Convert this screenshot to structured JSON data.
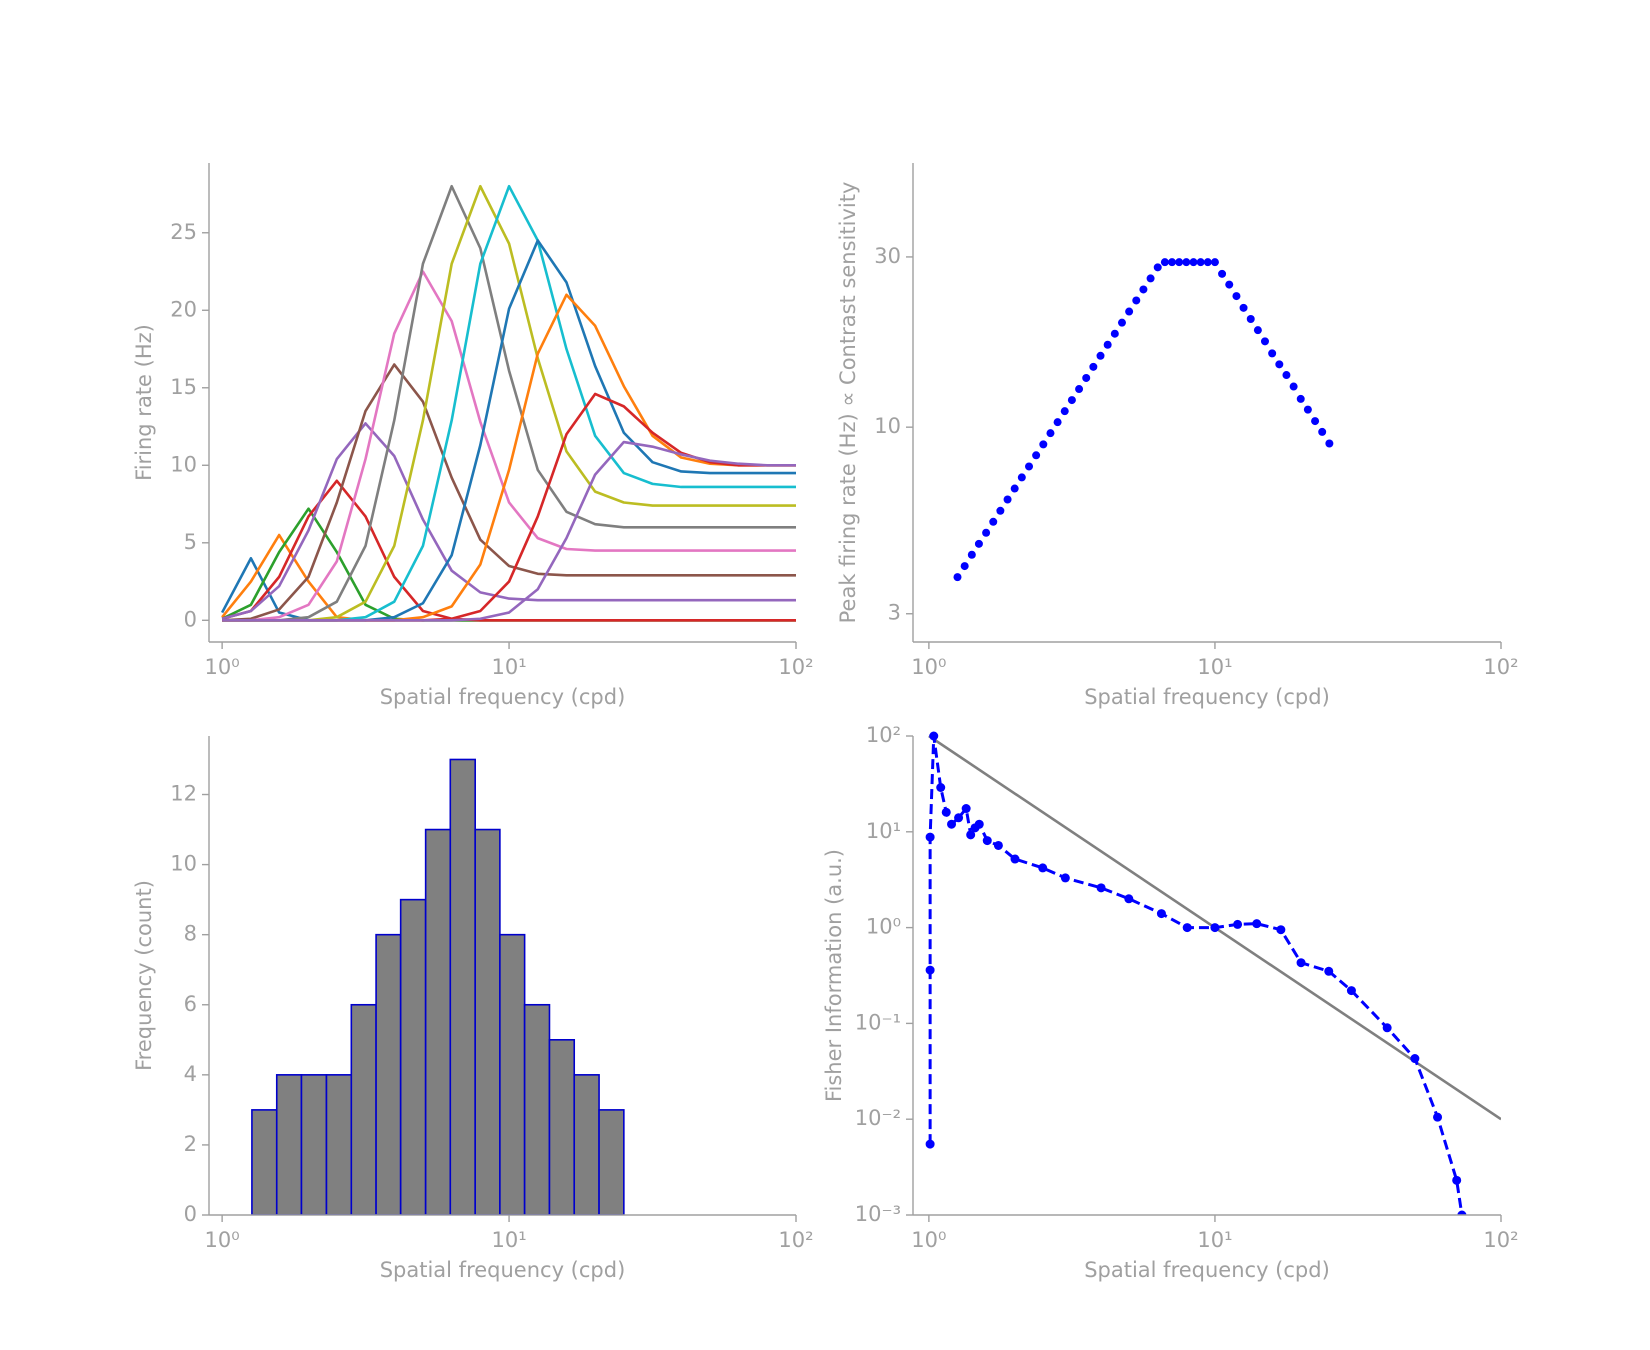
{
  "chart_data": [
    {
      "type": "line",
      "xscale": "log",
      "xlabel": "Spatial frequency (cpd)",
      "ylabel": "Firing rate (Hz)",
      "xlim": [
        0.9,
        100
      ],
      "ylim": [
        -1.4,
        29.5
      ],
      "xticks": [
        {
          "value": 1,
          "label": "10⁰"
        },
        {
          "value": 10,
          "label": "10¹"
        },
        {
          "value": 100,
          "label": "10²"
        }
      ],
      "yticks": [
        0,
        5,
        10,
        15,
        20,
        25
      ],
      "x": [
        1,
        1.26,
        1.58,
        2,
        2.51,
        3.16,
        3.98,
        5.01,
        6.31,
        7.94,
        10,
        12.59,
        15.85,
        19.95,
        25.12,
        31.62,
        39.81,
        50.12,
        63.1,
        79.43,
        100
      ],
      "series": [
        {
          "color": "#1f77b4",
          "values": [
            0.5,
            4,
            0.5,
            0,
            0,
            0,
            0,
            0,
            0,
            0,
            0,
            0,
            0,
            0,
            0,
            0,
            0,
            0,
            0,
            0,
            0
          ]
        },
        {
          "color": "#ff7f0e",
          "values": [
            0.2,
            2.5,
            5.5,
            2.5,
            0.2,
            0,
            0,
            0,
            0,
            0,
            0,
            0,
            0,
            0,
            0,
            0,
            0,
            0,
            0,
            0,
            0
          ]
        },
        {
          "color": "#2ca02c",
          "values": [
            0.1,
            1.0,
            4.4,
            7.2,
            4.4,
            1.0,
            0.1,
            0,
            0,
            0,
            0,
            0,
            0,
            0,
            0,
            0,
            0,
            0,
            0,
            0,
            0
          ]
        },
        {
          "color": "#d62728",
          "values": [
            0.1,
            0.6,
            2.8,
            6.7,
            9,
            6.7,
            2.8,
            0.6,
            0.1,
            0,
            0,
            0,
            0,
            0,
            0,
            0,
            0,
            0,
            0,
            0,
            0
          ]
        },
        {
          "color": "#9467bd",
          "values": [
            0.1,
            0.6,
            2.2,
            5.8,
            10.4,
            12.7,
            10.6,
            6.5,
            3.2,
            1.8,
            1.4,
            1.3,
            1.3,
            1.3,
            1.3,
            1.3,
            1.3,
            1.3,
            1.3,
            1.3,
            1.3
          ]
        },
        {
          "color": "#8c564b",
          "values": [
            0,
            0.1,
            0.7,
            2.8,
            7.6,
            13.5,
            16.5,
            14.1,
            9.2,
            5.2,
            3.5,
            3.0,
            2.9,
            2.9,
            2.9,
            2.9,
            2.9,
            2.9,
            2.9,
            2.9,
            2.9
          ]
        },
        {
          "color": "#e377c2",
          "values": [
            0,
            0,
            0.2,
            1.0,
            3.8,
            10.4,
            18.5,
            22.5,
            19.3,
            12.8,
            7.6,
            5.3,
            4.6,
            4.5,
            4.5,
            4.5,
            4.5,
            4.5,
            4.5,
            4.5,
            4.5
          ]
        },
        {
          "color": "#7f7f7f",
          "values": [
            0,
            0,
            0,
            0.2,
            1.2,
            4.8,
            12.9,
            23.0,
            28,
            24.0,
            16.1,
            9.7,
            7.0,
            6.2,
            6,
            6,
            6,
            6,
            6,
            6,
            6
          ]
        },
        {
          "color": "#bcbd22",
          "values": [
            0,
            0,
            0,
            0,
            0.2,
            1.2,
            4.8,
            12.9,
            23.0,
            28,
            24.3,
            16.9,
            10.9,
            8.3,
            7.6,
            7.4,
            7.4,
            7.4,
            7.4,
            7.4,
            7.4
          ]
        },
        {
          "color": "#17becf",
          "values": [
            0,
            0,
            0,
            0,
            0,
            0.2,
            1.2,
            4.8,
            12.9,
            23.0,
            28,
            24.5,
            17.5,
            11.9,
            9.5,
            8.8,
            8.6,
            8.6,
            8.6,
            8.6,
            8.6
          ]
        },
        {
          "color": "#1f77b4",
          "values": [
            0,
            0,
            0,
            0,
            0,
            0,
            0.2,
            1.1,
            4.2,
            11.3,
            20.1,
            24.5,
            21.8,
            16.4,
            12.1,
            10.2,
            9.6,
            9.5,
            9.5,
            9.5,
            9.5
          ]
        },
        {
          "color": "#ff7f0e",
          "values": [
            0,
            0,
            0,
            0,
            0,
            0,
            0,
            0.2,
            0.9,
            3.6,
            9.7,
            17.2,
            21,
            19.0,
            15.1,
            11.9,
            10.5,
            10.1,
            10,
            10,
            10
          ]
        },
        {
          "color": "#d62728",
          "values": [
            0,
            0,
            0,
            0,
            0,
            0,
            0,
            0,
            0.1,
            0.6,
            2.5,
            6.7,
            12.0,
            14.6,
            13.8,
            12.1,
            10.8,
            10.2,
            10,
            10,
            10
          ]
        },
        {
          "color": "#9467bd",
          "values": [
            0,
            0,
            0,
            0,
            0,
            0,
            0,
            0,
            0,
            0.1,
            0.5,
            2.0,
            5.3,
            9.4,
            11.5,
            11.2,
            10.7,
            10.3,
            10.1,
            10,
            10
          ]
        }
      ]
    },
    {
      "type": "scatter",
      "xscale": "log",
      "yscale": "log",
      "xlabel": "Spatial frequency (cpd)",
      "ylabel": "Peak firing rate (Hz) ∝ Contrast sensitivity",
      "xlim": [
        0.88,
        100
      ],
      "ylim": [
        2.5,
        55
      ],
      "xticks": [
        {
          "value": 1,
          "label": "10⁰"
        },
        {
          "value": 10,
          "label": "10¹"
        },
        {
          "value": 100,
          "label": "10²"
        }
      ],
      "yticks": [
        3,
        10,
        30
      ],
      "color": "#0000ff",
      "x": [
        1.259,
        1.334,
        1.413,
        1.496,
        1.585,
        1.679,
        1.778,
        1.884,
        1.995,
        2.113,
        2.239,
        2.371,
        2.512,
        2.661,
        2.818,
        2.985,
        3.162,
        3.35,
        3.548,
        3.758,
        3.981,
        4.217,
        4.467,
        4.732,
        5.012,
        5.309,
        5.623,
        5.957,
        6.31,
        6.683,
        7.079,
        7.499,
        7.943,
        8.414,
        8.913,
        9.441,
        10,
        10.59,
        11.22,
        11.89,
        12.59,
        13.34,
        14.13,
        14.96,
        15.85,
        16.79,
        17.78,
        18.84,
        19.95,
        21.13,
        22.39,
        23.71,
        25.12
      ],
      "values": [
        3.8,
        4.08,
        4.39,
        4.71,
        5.06,
        5.43,
        5.83,
        6.27,
        6.73,
        7.23,
        7.76,
        8.34,
        8.95,
        9.62,
        10.33,
        11.09,
        11.91,
        12.79,
        13.74,
        14.76,
        15.85,
        17.02,
        18.28,
        19.63,
        21.09,
        22.65,
        24.32,
        26.12,
        28.05,
        29,
        29,
        29,
        29,
        29,
        29,
        29,
        29,
        26.9,
        25.1,
        23.3,
        21.6,
        20.1,
        18.7,
        17.4,
        16.1,
        15.0,
        14.0,
        13.0,
        12.0,
        11.2,
        10.4,
        9.7,
        9.0
      ]
    },
    {
      "type": "histogram",
      "xscale": "log",
      "xlabel": "Spatial frequency (cpd)",
      "ylabel": "Frequency (count)",
      "xlim": [
        0.9,
        100
      ],
      "ylim": [
        0,
        13.67
      ],
      "xticks": [
        {
          "value": 1,
          "label": "10⁰"
        },
        {
          "value": 10,
          "label": "10¹"
        },
        {
          "value": 100,
          "label": "10²"
        }
      ],
      "yticks": [
        0,
        2,
        4,
        6,
        8,
        10,
        12
      ],
      "color": "#808080",
      "edgecolor": "#0000cc",
      "bins": [
        1.27,
        1.55,
        1.89,
        2.31,
        2.82,
        3.44,
        4.19,
        5.12,
        6.24,
        7.62,
        9.29,
        11.33,
        13.83,
        16.87,
        20.59,
        25.12
      ],
      "values": [
        3,
        4,
        4,
        4,
        6,
        8,
        9,
        11,
        13,
        11,
        8,
        6,
        5,
        4,
        3
      ]
    },
    {
      "type": "line",
      "xscale": "log",
      "yscale": "log",
      "xlabel": "Spatial frequency (cpd)",
      "ylabel": "Fisher Information (a.u.)",
      "xlim": [
        0.88,
        100
      ],
      "ylim": [
        0.001,
        100
      ],
      "xticks": [
        {
          "value": 1,
          "label": "10⁰"
        },
        {
          "value": 10,
          "label": "10¹"
        },
        {
          "value": 100,
          "label": "10²"
        }
      ],
      "yticks": [
        {
          "value": 0.001,
          "label": "10⁻³"
        },
        {
          "value": 0.01,
          "label": "10⁻²"
        },
        {
          "value": 0.1,
          "label": "10⁻¹"
        },
        {
          "value": 1,
          "label": "10⁰"
        },
        {
          "value": 10,
          "label": "10¹"
        },
        {
          "value": 100,
          "label": "10²"
        }
      ],
      "series": [
        {
          "color": "#808080",
          "x": [
            1,
            100
          ],
          "values": [
            100,
            0.01
          ]
        },
        {
          "color": "#0000ff",
          "linestyle": "dashed",
          "marker": "o",
          "x": [
            1.01,
            1.01,
            1.01,
            1.04,
            1.1,
            1.15,
            1.2,
            1.27,
            1.35,
            1.4,
            1.45,
            1.5,
            1.6,
            1.75,
            2,
            2.5,
            3,
            4,
            5,
            6.5,
            8,
            10,
            12,
            14,
            17,
            20,
            25,
            30,
            40,
            50,
            60,
            70,
            73
          ],
          "values": [
            0.0055,
            0.36,
            8.8,
            100,
            29,
            16,
            12,
            14,
            17.5,
            9.3,
            11,
            12,
            8.1,
            7.2,
            5.2,
            4.2,
            3.3,
            2.6,
            2.0,
            1.4,
            1.0,
            1.0,
            1.08,
            1.1,
            0.95,
            0.43,
            0.35,
            0.22,
            0.09,
            0.043,
            0.0105,
            0.0023,
            0.001
          ]
        }
      ]
    }
  ]
}
